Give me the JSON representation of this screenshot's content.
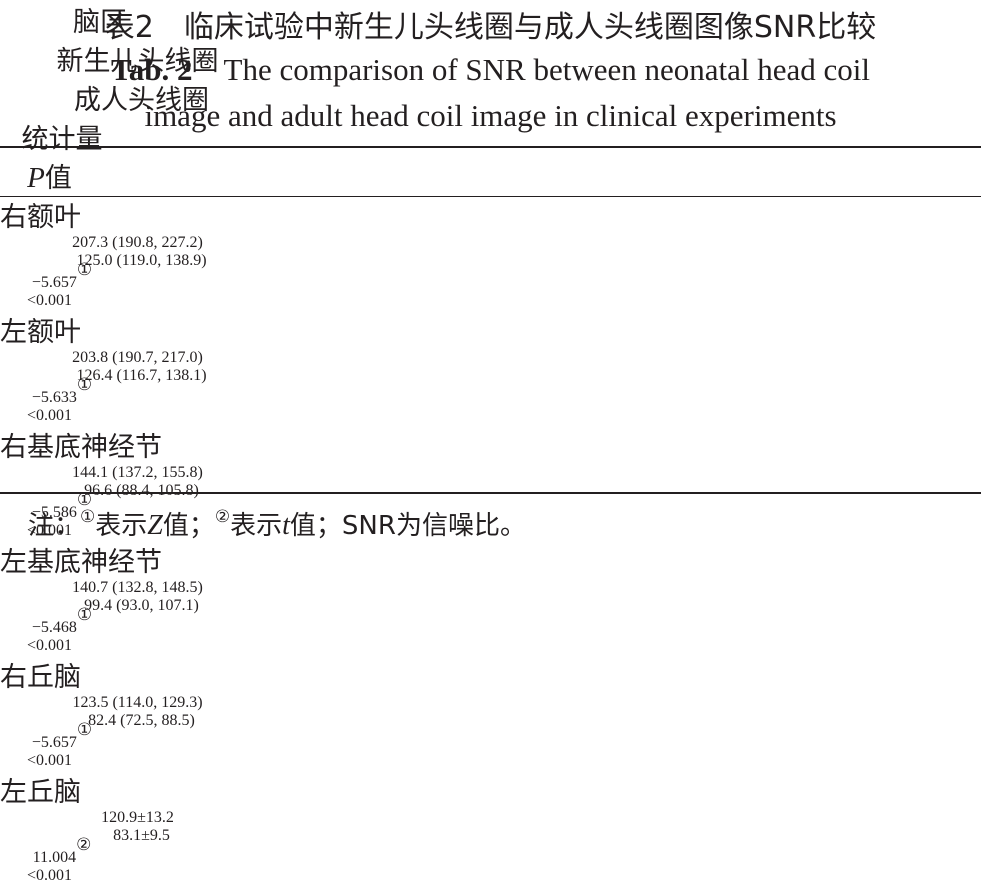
{
  "caption": {
    "cn": "表2　临床试验中新生儿头线圈与成人头线圈图像SNR比较",
    "en_label": "Tab. 2",
    "en_line1": "The comparison of SNR between neonatal head coil",
    "en_line2": "image and adult head coil image in clinical experiments"
  },
  "table": {
    "header": [
      "脑区",
      "新生儿头线圈",
      "成人头线圈",
      "统计量",
      {
        "italic": "P",
        "text": "值"
      }
    ],
    "rows": [
      [
        "右额叶",
        "207.3 (190.8, 227.2)",
        "125.0 (119.0, 138.9)",
        {
          "value": "−5.657",
          "note": "①"
        },
        "<0.001"
      ],
      [
        "左额叶",
        "203.8 (190.7, 217.0)",
        "126.4 (116.7, 138.1)",
        {
          "value": "−5.633",
          "note": "①"
        },
        "<0.001"
      ],
      [
        "右基底神经节",
        "144.1 (137.2, 155.8)",
        "96.6 (88.4, 105.8)",
        {
          "value": "−5.586",
          "note": "①"
        },
        "<0.001"
      ],
      [
        "左基底神经节",
        "140.7 (132.8, 148.5)",
        "99.4 (93.0, 107.1)",
        {
          "value": "−5.468",
          "note": "①"
        },
        "<0.001"
      ],
      [
        "右丘脑",
        "123.5 (114.0, 129.3)",
        "82.4 (72.5, 88.5)",
        {
          "value": "−5.657",
          "note": "①"
        },
        "<0.001"
      ],
      [
        "左丘脑",
        "120.9±13.2",
        "83.1±9.5",
        {
          "value": "11.004",
          "note": "②"
        },
        "<0.001"
      ]
    ]
  },
  "footnote": [
    "注：",
    "①",
    "表示",
    "Z",
    "值；",
    "②",
    "表示",
    "t",
    "值；SNR为信噪比。"
  ]
}
